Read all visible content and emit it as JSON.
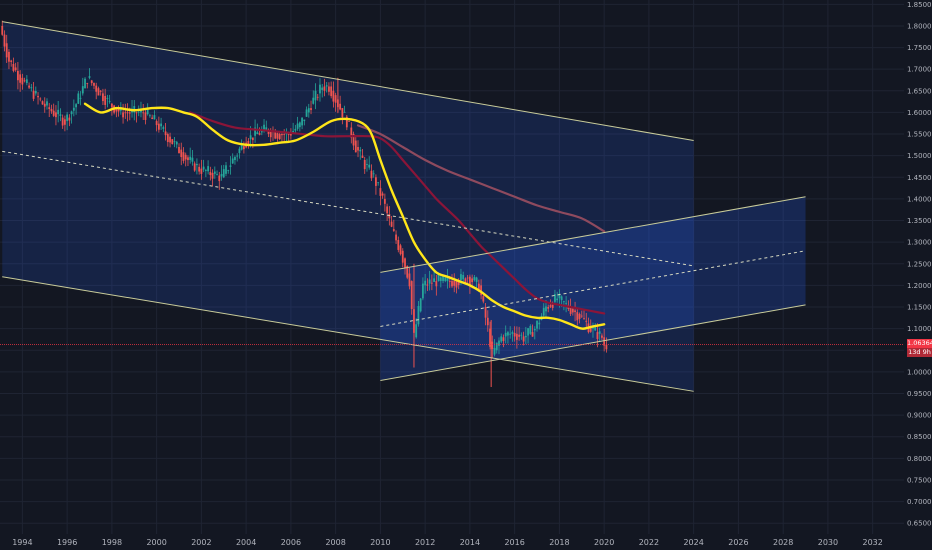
{
  "chart_data": {
    "type": "line",
    "instrument": "",
    "xlim": [
      1993.0,
      2033.4
    ],
    "ylim": [
      0.625,
      1.86
    ],
    "x_ticks": [
      "1994",
      "1996",
      "1998",
      "2000",
      "2002",
      "2004",
      "2006",
      "2008",
      "2010",
      "2012",
      "2014",
      "2016",
      "2018",
      "2020",
      "2022",
      "2024",
      "2026",
      "2028",
      "2030",
      "2032"
    ],
    "y_ticks": [
      "0.65000",
      "0.70000",
      "0.75000",
      "0.80000",
      "0.85000",
      "0.90000",
      "0.95000",
      "1.00000",
      "1.05000",
      "1.10000",
      "1.15000",
      "1.20000",
      "1.25000",
      "1.30000",
      "1.35000",
      "1.40000",
      "1.45000",
      "1.50000",
      "1.55000",
      "1.60000",
      "1.65000",
      "1.70000",
      "1.75000",
      "1.80000",
      "1.85000"
    ],
    "price_series": {
      "x": [
        1993.1,
        1993.5,
        1994,
        1994.5,
        1995,
        1995.5,
        1996,
        1996.5,
        1997,
        1997.5,
        1998,
        1998.5,
        1999,
        1999.5,
        2000,
        2000.5,
        2001,
        2001.5,
        2002,
        2002.5,
        2003,
        2003.5,
        2004,
        2004.5,
        2005,
        2005.5,
        2006,
        2006.5,
        2007,
        2007.5,
        2007.8,
        2008.2,
        2008.6,
        2009,
        2009.4,
        2009.8,
        2010.2,
        2010.6,
        2011,
        2011.4,
        2011.6,
        2012,
        2012.5,
        2013,
        2013.5,
        2014,
        2014.5,
        2014.9,
        2015.1,
        2015.5,
        2016,
        2016.5,
        2017,
        2017.5,
        2018,
        2018.5,
        2019,
        2019.5,
        2020,
        2020.1
      ],
      "y": [
        1.8,
        1.72,
        1.68,
        1.65,
        1.62,
        1.6,
        1.58,
        1.62,
        1.68,
        1.65,
        1.62,
        1.6,
        1.6,
        1.6,
        1.58,
        1.55,
        1.52,
        1.49,
        1.47,
        1.46,
        1.45,
        1.49,
        1.53,
        1.55,
        1.56,
        1.55,
        1.55,
        1.57,
        1.62,
        1.66,
        1.66,
        1.62,
        1.58,
        1.52,
        1.48,
        1.45,
        1.4,
        1.33,
        1.28,
        1.21,
        1.08,
        1.2,
        1.21,
        1.21,
        1.21,
        1.22,
        1.2,
        1.1,
        1.04,
        1.08,
        1.09,
        1.08,
        1.1,
        1.15,
        1.17,
        1.15,
        1.13,
        1.1,
        1.08,
        1.063
      ]
    },
    "ma_fast": {
      "name": "",
      "color": "#ffe619",
      "x": [
        1996.8,
        1997.5,
        1998.2,
        1999,
        1999.8,
        2000.5,
        2001.2,
        2001.8,
        2002.5,
        2003.2,
        2004,
        2004.8,
        2005.5,
        2006.2,
        2007,
        2007.8,
        2008.5,
        2009.2,
        2009.6,
        2010,
        2010.5,
        2011,
        2011.5,
        2012,
        2012.5,
        2013,
        2013.5,
        2014,
        2014.5,
        2015,
        2015.5,
        2016,
        2016.5,
        2017,
        2017.5,
        2018,
        2018.5,
        2019,
        2019.5,
        2020
      ],
      "y": [
        1.62,
        1.6,
        1.61,
        1.605,
        1.61,
        1.61,
        1.6,
        1.59,
        1.56,
        1.535,
        1.525,
        1.525,
        1.53,
        1.535,
        1.555,
        1.58,
        1.585,
        1.575,
        1.55,
        1.49,
        1.42,
        1.36,
        1.3,
        1.26,
        1.23,
        1.22,
        1.21,
        1.2,
        1.185,
        1.165,
        1.15,
        1.14,
        1.13,
        1.125,
        1.125,
        1.12,
        1.11,
        1.1,
        1.105,
        1.11
      ]
    },
    "ma_mid": {
      "name": "",
      "color": "#8b1538",
      "x": [
        2001.5,
        2002.5,
        2003.5,
        2004.5,
        2005.5,
        2006.5,
        2007.5,
        2008.5,
        2009.5,
        2010,
        2010.5,
        2011,
        2011.5,
        2012,
        2012.5,
        2013,
        2013.5,
        2014,
        2014.5,
        2015,
        2015.5,
        2016,
        2016.5,
        2017,
        2017.5,
        2018,
        2018.5,
        2019,
        2019.5,
        2020
      ],
      "y": [
        1.6,
        1.58,
        1.565,
        1.56,
        1.555,
        1.55,
        1.545,
        1.545,
        1.545,
        1.54,
        1.52,
        1.49,
        1.46,
        1.43,
        1.4,
        1.375,
        1.35,
        1.32,
        1.29,
        1.265,
        1.24,
        1.215,
        1.19,
        1.17,
        1.16,
        1.155,
        1.15,
        1.145,
        1.14,
        1.135
      ]
    },
    "ma_slow": {
      "name": "",
      "color": "#8e4a5e",
      "x": [
        2009,
        2010,
        2011,
        2012,
        2013,
        2014,
        2015,
        2016,
        2017,
        2018,
        2019,
        2020
      ],
      "y": [
        1.57,
        1.55,
        1.52,
        1.49,
        1.465,
        1.445,
        1.425,
        1.405,
        1.385,
        1.37,
        1.355,
        1.325
      ]
    },
    "channels": [
      {
        "name": "",
        "upper": [
          [
            1993.1,
            1.81
          ],
          [
            2024.0,
            1.535
          ]
        ],
        "lower": [
          [
            1993.1,
            1.22
          ],
          [
            2024.0,
            0.955
          ]
        ],
        "mid": [
          [
            1993.1,
            1.51
          ],
          [
            2024.0,
            1.245
          ]
        ]
      },
      {
        "name": "",
        "upper": [
          [
            2010.0,
            1.23
          ],
          [
            2029.0,
            1.405
          ]
        ],
        "lower": [
          [
            2010.0,
            0.98
          ],
          [
            2029.0,
            1.155
          ]
        ],
        "mid": [
          [
            2010.0,
            1.105
          ],
          [
            2029.0,
            1.28
          ]
        ]
      }
    ],
    "current_price": {
      "value": "1.06364",
      "countdown": "13d 9h",
      "y": 1.0636,
      "color": "#f23645"
    }
  }
}
